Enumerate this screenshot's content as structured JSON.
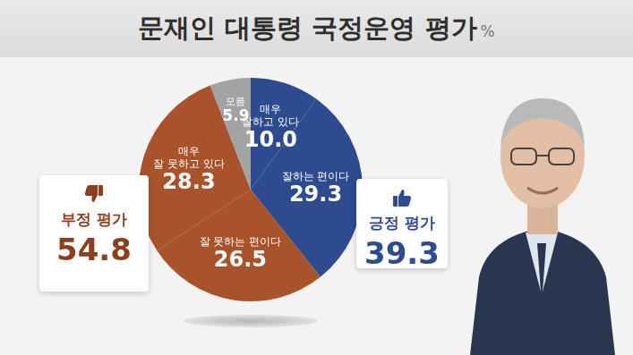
{
  "chart_data": {
    "type": "pie",
    "title": "문재인 대통령 국정운영 평가",
    "unit": "%",
    "categories": [
      "매우\n잘하고 있다",
      "잘하는 편이다",
      "잘 못하는 편이다",
      "매우\n잘 못하고 있다",
      "모름"
    ],
    "values": [
      10.0,
      29.3,
      26.5,
      28.3,
      5.9
    ],
    "value_labels": [
      "10.0",
      "29.3",
      "26.5",
      "28.3",
      "5.9"
    ],
    "colors": [
      "#2d4b8e",
      "#2d4b8e",
      "#a8532b",
      "#a8532b",
      "#a3a3a3"
    ],
    "data_labels": true
  },
  "summary_boxes": [
    {
      "label": "부정 평가",
      "value": 54.8,
      "color": "#8a3f1d"
    },
    {
      "label": "긍정 평가",
      "value": 39.3,
      "color": "#2d4b8e"
    }
  ]
}
